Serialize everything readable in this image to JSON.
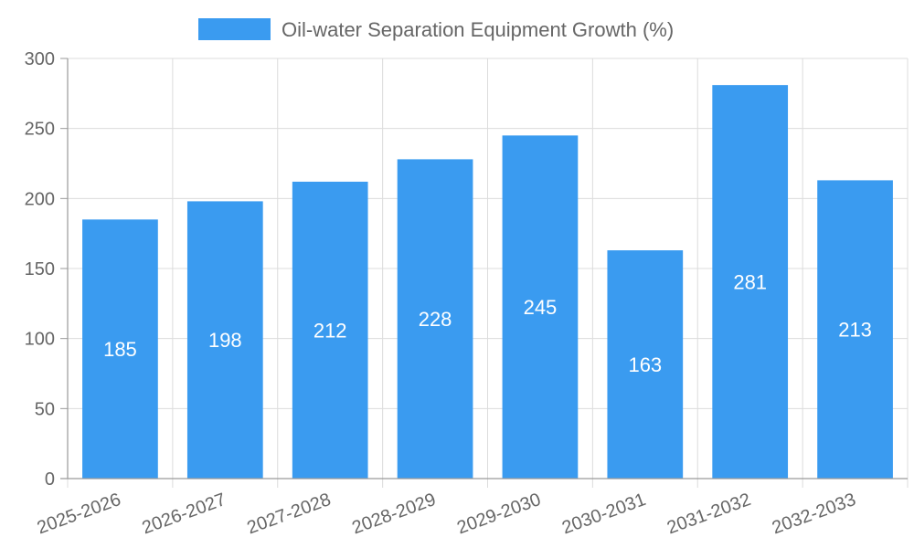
{
  "chart_data": {
    "type": "bar",
    "title": "",
    "xlabel": "",
    "ylabel": "",
    "categories": [
      "2025-2026",
      "2026-2027",
      "2027-2028",
      "2028-2029",
      "2029-2030",
      "2030-2031",
      "2031-2032",
      "2032-2033"
    ],
    "series": [
      {
        "name": "Oil-water Separation Equipment Growth (%)",
        "values": [
          185,
          198,
          212,
          228,
          245,
          163,
          281,
          213
        ],
        "color": "#3a9bf0"
      }
    ],
    "ylim": [
      0,
      300
    ],
    "yticks": [
      0,
      50,
      100,
      150,
      200,
      250,
      300
    ],
    "grid": true,
    "legend_position": "top-center",
    "data_labels": true,
    "x_tick_rotation": "slanted"
  }
}
